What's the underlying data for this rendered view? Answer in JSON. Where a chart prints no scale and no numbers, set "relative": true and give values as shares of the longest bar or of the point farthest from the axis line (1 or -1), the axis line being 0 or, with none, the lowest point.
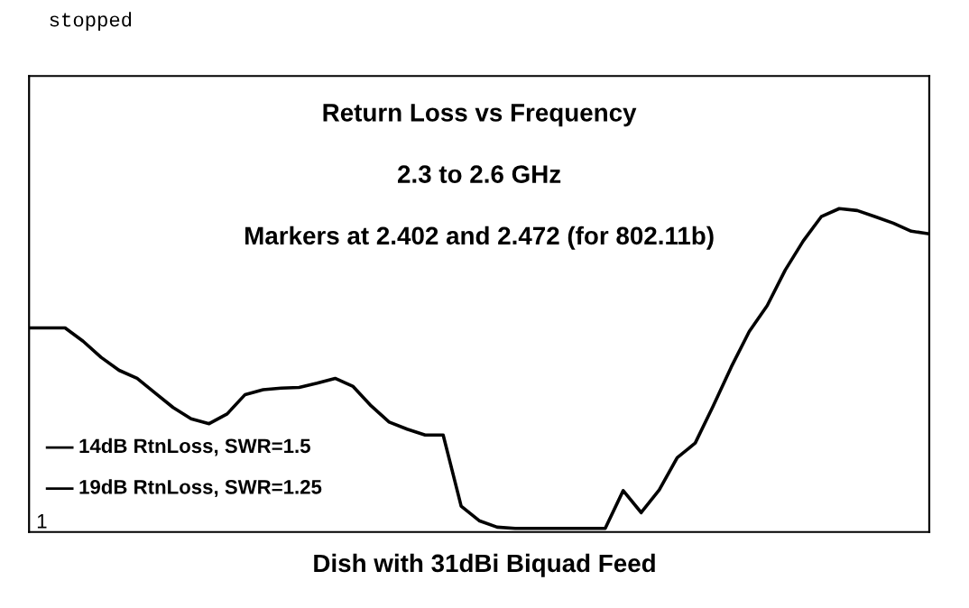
{
  "chart_data": {
    "type": "line",
    "title": "Return Loss vs Frequency",
    "subtitle": "2.3 to 2.6 GHz",
    "xlabel": "Dish with 31dBi Biquad Feed",
    "annotations": [
      "Markers at 2.402 and 2.472 (for 802.11b)",
      "stopped",
      "14dB RtnLoss, SWR=1.5",
      "19dB RtnLoss, SWR=1.25",
      "1"
    ],
    "relative": true,
    "grid": false,
    "legend": false,
    "categories": [
      null,
      null,
      null,
      null,
      null,
      null,
      null,
      null,
      null,
      null,
      null,
      null,
      null,
      null,
      null,
      null,
      null,
      null,
      null,
      null,
      null,
      null,
      null,
      null,
      null,
      null,
      null,
      null,
      null,
      null,
      null,
      null,
      null,
      null,
      null,
      null,
      null,
      null,
      null,
      null,
      null,
      null,
      null,
      null,
      null,
      null,
      null,
      null,
      null,
      null,
      null
    ],
    "series": [
      {
        "color": "#000000",
        "values": [
          0.631,
          0.631,
          0.631,
          0.59,
          0.54,
          0.5,
          0.475,
          0.43,
          0.385,
          0.35,
          0.335,
          0.365,
          0.425,
          0.44,
          0.445,
          0.447,
          0.46,
          0.475,
          0.45,
          0.39,
          0.34,
          0.318,
          0.3,
          0.3,
          0.08,
          0.035,
          0.015,
          0.011,
          0.011,
          0.011,
          0.011,
          0.011,
          0.011,
          0.128,
          0.06,
          0.13,
          0.23,
          0.275,
          0.39,
          0.51,
          0.62,
          0.7,
          0.81,
          0.9,
          0.975,
          1,
          0.994,
          0.975,
          0.955,
          0.93,
          0.922
        ]
      }
    ]
  }
}
